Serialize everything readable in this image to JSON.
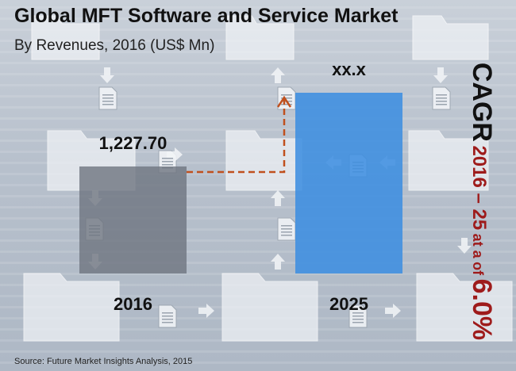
{
  "header": {
    "title": "Global MFT Software and Service Market",
    "subtitle": "By Revenues, 2016 (US$ Mn)"
  },
  "source": "Source: Future Market Insights Analysis, 2015",
  "cagr": {
    "label": "CAGR",
    "period": "2016 – 25",
    "at_a": "at a",
    "of": "of",
    "value": "6.0%"
  },
  "chart_data": {
    "type": "bar",
    "title": "Global MFT Software and Service Market",
    "subtitle": "By Revenues, 2016 (US$ Mn)",
    "categories": [
      "2016",
      "2025"
    ],
    "values": [
      1227.7,
      null
    ],
    "value_labels": [
      "1,227.70",
      "xx.x"
    ],
    "colors": {
      "2016": "#6e7480",
      "2025": "#3d8ee0",
      "arrow": "#c0501e",
      "cagr_text": "#9e1b1b"
    },
    "xlabel": "",
    "ylabel": "",
    "grid": false,
    "legend": "none"
  }
}
